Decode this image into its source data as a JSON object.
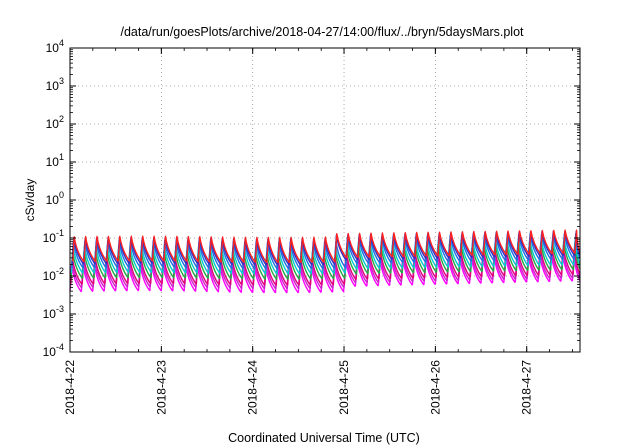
{
  "chart_data": {
    "type": "line",
    "title": "/data/run/goesPlots/archive/2018-04-27/14:00/flux/../bryn/5daysMars.plot",
    "xlabel": "Coordinated Universal Time (UTC)",
    "ylabel": "cSv/day",
    "y_scale": "log",
    "ylim": [
      0.0001,
      10000
    ],
    "y_ticks": [
      {
        "value": 0.0001,
        "base": "10",
        "exp": "-4"
      },
      {
        "value": 0.001,
        "base": "10",
        "exp": "-3"
      },
      {
        "value": 0.01,
        "base": "10",
        "exp": "-2"
      },
      {
        "value": 0.1,
        "base": "10",
        "exp": "-1"
      },
      {
        "value": 1,
        "base": "10",
        "exp": "0"
      },
      {
        "value": 10,
        "base": "10",
        "exp": "1"
      },
      {
        "value": 100,
        "base": "10",
        "exp": "2"
      },
      {
        "value": 1000,
        "base": "10",
        "exp": "3"
      },
      {
        "value": 10000,
        "base": "10",
        "exp": "4"
      }
    ],
    "xlim": [
      "2018-04-22 00:00",
      "2018-04-27 14:00"
    ],
    "x_ticks": [
      "2018-4-22",
      "2018-4-23",
      "2018-4-24",
      "2018-4-25",
      "2018-4-26",
      "2018-4-27"
    ],
    "grid": true,
    "sawtooth_period_hours": 3,
    "series": [
      {
        "color": "#ff00ff",
        "peak": [
          0.018,
          0.04
        ],
        "trough": [
          0.0035,
          0.0075
        ]
      },
      {
        "color": "#cc22cc",
        "peak": [
          0.022,
          0.048
        ],
        "trough": [
          0.0045,
          0.009
        ]
      },
      {
        "color": "#e0007a",
        "peak": [
          0.028,
          0.06
        ],
        "trough": [
          0.0055,
          0.011
        ]
      },
      {
        "color": "#22aa44",
        "peak": [
          0.04,
          0.08
        ],
        "trough": [
          0.008,
          0.015
        ]
      },
      {
        "color": "#00cccc",
        "peak": [
          0.055,
          0.1
        ],
        "trough": [
          0.011,
          0.02
        ]
      },
      {
        "color": "#1e6fe0",
        "peak": [
          0.075,
          0.13
        ],
        "trough": [
          0.015,
          0.028
        ]
      },
      {
        "color": "#3030c8",
        "peak": [
          0.09,
          0.15
        ],
        "trough": [
          0.019,
          0.035
        ]
      },
      {
        "color": "#ff2020",
        "peak": [
          0.1,
          0.16
        ],
        "trough": [
          0.022,
          0.04
        ]
      }
    ]
  }
}
